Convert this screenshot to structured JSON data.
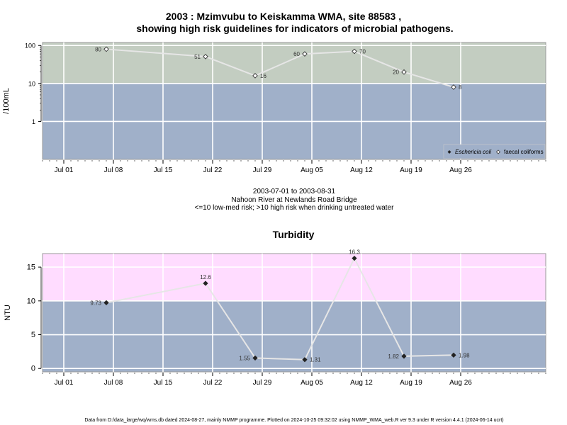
{
  "top_title_line1": "2003 : Mzimvubu to Keiskamma WMA, site 88583 ,",
  "top_title_line2": "showing high risk guidelines for indicators of microbial pathogens.",
  "middle_text": {
    "date_range": "2003-07-01 to 2003-08-31",
    "location": "Nahoon River at Newlands Road Bridge",
    "guideline": "<=10 low-med risk; >10 high risk when drinking untreated water"
  },
  "footer": "Data from D:/data_large/wq/wms.db dated 2024-08-27, mainly NMMP programme. Plotted on 2024-10-25 09:32:02 using NMMP_WMA_web.R ver 9.3 under R version 4.4.1 (2024-06-14 ucrt)",
  "colors": {
    "high_risk_top": "#c3cdc1",
    "low_risk": "#a0b0c9",
    "high_risk_bottom": "#ffdcff",
    "line": "#e6e6e6",
    "grid": "#ffffff",
    "marker": "#222222"
  },
  "chart_data": [
    {
      "type": "line",
      "title": "",
      "ylabel": "/100mL",
      "y_scale": "log",
      "ylim": [
        0.1,
        120
      ],
      "y_ticks": [
        "1",
        "10",
        "100"
      ],
      "x_ticks": [
        "Jul 01",
        "Jul 08",
        "Jul 15",
        "Jul 22",
        "Jul 29",
        "Aug 05",
        "Aug 12",
        "Aug 19",
        "Aug 26"
      ],
      "xlim": [
        "2003-06-28",
        "2003-09-07"
      ],
      "guideline": 10,
      "legend": [
        "Eschericia coli",
        "faecal coliforms"
      ],
      "legend_position": "bottom-right",
      "series": [
        {
          "name": "faecal coliforms",
          "marker": "open-diamond",
          "x": [
            "2003-07-07",
            "2003-07-21",
            "2003-07-28",
            "2003-08-04",
            "2003-08-11",
            "2003-08-18",
            "2003-08-25"
          ],
          "values": [
            80,
            51,
            16,
            60,
            70,
            20,
            8
          ],
          "labels": [
            "80",
            "51",
            "16",
            "60",
            "70",
            "20",
            "8"
          ]
        }
      ]
    },
    {
      "type": "line",
      "title": "Turbidity",
      "ylabel": "NTU",
      "ylim": [
        -0.5,
        17
      ],
      "y_ticks": [
        "0",
        "5",
        "10",
        "15"
      ],
      "x_ticks": [
        "Jul 01",
        "Jul 08",
        "Jul 15",
        "Jul 22",
        "Jul 29",
        "Aug 05",
        "Aug 12",
        "Aug 19",
        "Aug 26"
      ],
      "xlim": [
        "2003-06-28",
        "2003-09-07"
      ],
      "guideline": 10,
      "series": [
        {
          "name": "",
          "marker": "filled-diamond",
          "x": [
            "2003-07-07",
            "2003-07-21",
            "2003-07-28",
            "2003-08-04",
            "2003-08-11",
            "2003-08-18",
            "2003-08-25"
          ],
          "values": [
            9.73,
            12.6,
            1.55,
            1.31,
            16.3,
            1.82,
            1.98
          ],
          "labels": [
            "9.73",
            "12.6",
            "1.55",
            "1.31",
            "16.3",
            "1.82",
            "1.98"
          ]
        }
      ]
    }
  ]
}
